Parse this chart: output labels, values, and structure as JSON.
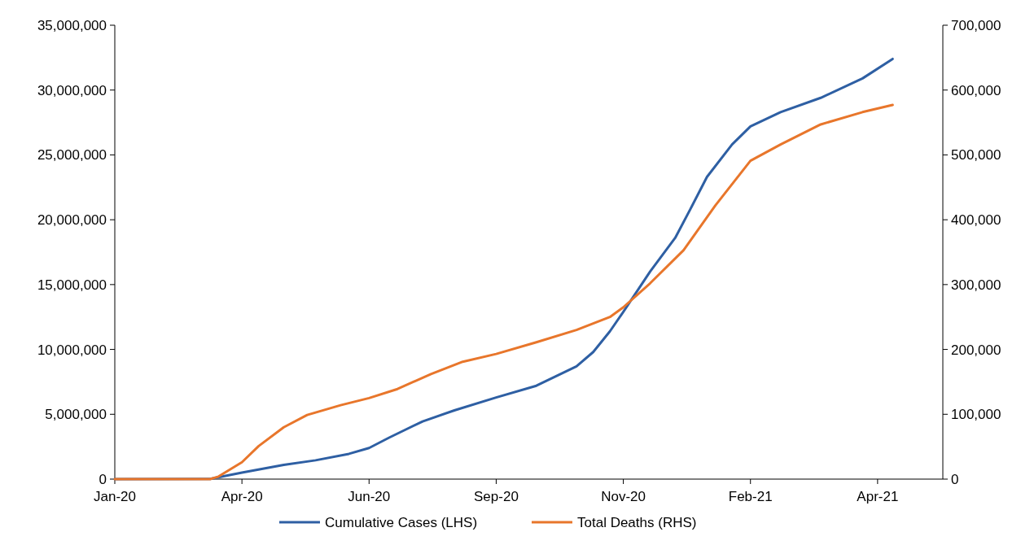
{
  "chart_data": {
    "type": "line",
    "xlim": [
      "2020-01-22",
      "2021-05-31"
    ],
    "xticks": [
      {
        "value": "2020-01-22",
        "label": "Jan-20"
      },
      {
        "value": "2020-04-07",
        "label": "Apr-20"
      },
      {
        "value": "2020-06-22",
        "label": "Jun-20"
      },
      {
        "value": "2020-09-06",
        "label": "Sep-20"
      },
      {
        "value": "2020-11-21",
        "label": "Nov-20"
      },
      {
        "value": "2021-02-05",
        "label": "Feb-21"
      },
      {
        "value": "2021-04-22",
        "label": "Apr-21"
      }
    ],
    "ylim": [
      0,
      35000000
    ],
    "yticks": [
      {
        "value": 0,
        "label": "0"
      },
      {
        "value": 5000000,
        "label": "5,000,000"
      },
      {
        "value": 10000000,
        "label": "10,000,000"
      },
      {
        "value": 15000000,
        "label": "15,000,000"
      },
      {
        "value": 20000000,
        "label": "20,000,000"
      },
      {
        "value": 25000000,
        "label": "25,000,000"
      },
      {
        "value": 30000000,
        "label": "30,000,000"
      },
      {
        "value": 35000000,
        "label": "35,000,000"
      }
    ],
    "y2lim": [
      0,
      700000
    ],
    "y2ticks": [
      {
        "value": 0,
        "label": "0"
      },
      {
        "value": 100000,
        "label": "100,000"
      },
      {
        "value": 200000,
        "label": "200,000"
      },
      {
        "value": 300000,
        "label": "300,000"
      },
      {
        "value": 400000,
        "label": "400,000"
      },
      {
        "value": 500000,
        "label": "500,000"
      },
      {
        "value": 600000,
        "label": "600,000"
      },
      {
        "value": 700000,
        "label": "700,000"
      }
    ],
    "legend": "bottom",
    "grid": false,
    "series": [
      {
        "name": "Cumulative Cases (LHS)",
        "color": "#2e5fa3",
        "x": [
          "2020-01-22",
          "2020-03-19",
          "2020-04-07",
          "2020-05-02",
          "2020-05-21",
          "2020-06-10",
          "2020-06-22",
          "2020-07-04",
          "2020-07-24",
          "2020-08-12",
          "2020-09-06",
          "2020-09-30",
          "2020-10-24",
          "2020-11-03",
          "2020-11-13",
          "2020-11-21",
          "2020-12-07",
          "2020-12-22",
          "2020-12-31",
          "2021-01-10",
          "2021-01-25",
          "2021-02-05",
          "2021-02-23",
          "2021-03-19",
          "2021-04-13",
          "2021-05-01"
        ],
        "values": [
          0,
          20000,
          500000,
          1100000,
          1450000,
          1950000,
          2400000,
          3200000,
          4450000,
          5300000,
          6300000,
          7200000,
          8700000,
          9800000,
          11400000,
          12900000,
          16000000,
          18600000,
          20800000,
          23300000,
          25800000,
          27200000,
          28300000,
          29400000,
          30900000,
          32400000
        ]
      },
      {
        "name": "Total Deaths (RHS)",
        "color": "#e8762b",
        "axis": "y2",
        "x": [
          "2020-01-22",
          "2020-03-19",
          "2020-03-24",
          "2020-04-07",
          "2020-04-17",
          "2020-05-02",
          "2020-05-16",
          "2020-06-05",
          "2020-06-22",
          "2020-07-09",
          "2020-07-29",
          "2020-08-17",
          "2020-09-06",
          "2020-09-30",
          "2020-10-24",
          "2020-11-13",
          "2020-11-21",
          "2020-12-07",
          "2020-12-27",
          "2021-01-15",
          "2021-02-05",
          "2021-02-23",
          "2021-03-19",
          "2021-04-13",
          "2021-05-01"
        ],
        "values": [
          0,
          0,
          4000,
          26000,
          51000,
          80000,
          99000,
          114000,
          125000,
          139000,
          162000,
          181000,
          193000,
          211000,
          230000,
          250000,
          265000,
          302000,
          353000,
          422000,
          491000,
          516000,
          547000,
          566000,
          577000
        ]
      }
    ]
  }
}
